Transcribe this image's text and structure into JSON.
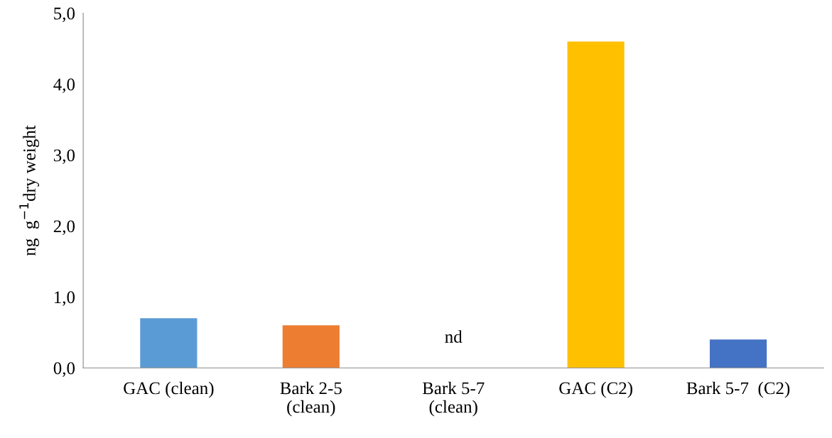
{
  "chart_data": {
    "type": "bar",
    "ylabel": "ng  g$^{−1}$dry weight",
    "categories": [
      "GAC (clean)",
      "Bark 2-5\n(clean)",
      "Bark 5-7\n(clean)",
      "GAC (C2)",
      "Bark 5-7  (C2)"
    ],
    "values": [
      0.7,
      0.6,
      null,
      4.6,
      0.4
    ],
    "colors": [
      "#5b9bd5",
      "#ed7d31",
      null,
      "#ffc000",
      "#4472c4"
    ],
    "ylim": [
      0,
      5
    ],
    "yticks": [
      {
        "value": 0,
        "label": "0,0"
      },
      {
        "value": 1,
        "label": "1,0"
      },
      {
        "value": 2,
        "label": "2,0"
      },
      {
        "value": 3,
        "label": "3,0"
      },
      {
        "value": 4,
        "label": "4,0"
      },
      {
        "value": 5,
        "label": "5,0"
      }
    ],
    "annotations": [
      "nd"
    ],
    "grid": false,
    "legend": false
  }
}
